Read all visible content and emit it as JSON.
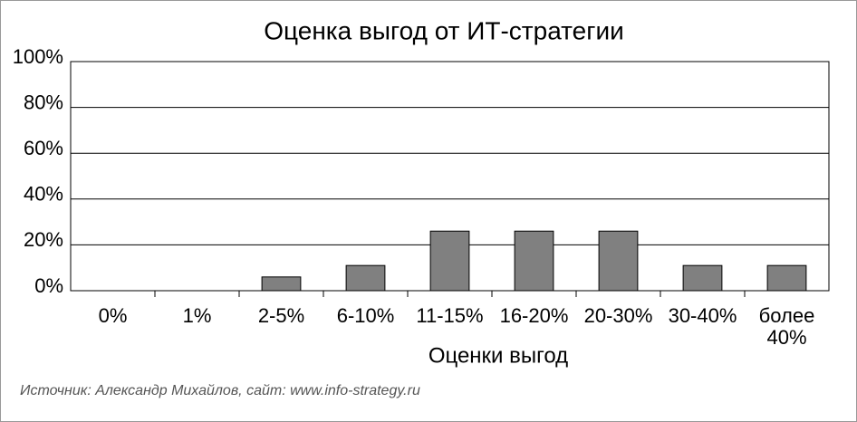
{
  "chart_data": {
    "type": "bar",
    "title": "Оценка выгод от ИТ-стратегии",
    "x_label": "Оценки выгод",
    "source": "Источник: Александр Михайлов, сайт: www.info-strategy.ru",
    "categories": [
      "0%",
      "1%",
      "2-5%",
      "6-10%",
      "11-15%",
      "16-20%",
      "20-30%",
      "30-40%",
      "более 40%"
    ],
    "values": [
      0,
      0,
      6,
      11,
      26,
      26,
      26,
      11,
      11
    ],
    "color": "#808080",
    "ylim": [
      0,
      100
    ],
    "yticks": [
      {
        "value": 0,
        "label": "0%"
      },
      {
        "value": 20,
        "label": "20%"
      },
      {
        "value": 40,
        "label": "40%"
      },
      {
        "value": 60,
        "label": "60%"
      },
      {
        "value": 80,
        "label": "80%"
      },
      {
        "value": 100,
        "label": "100%"
      }
    ],
    "grid": true
  }
}
